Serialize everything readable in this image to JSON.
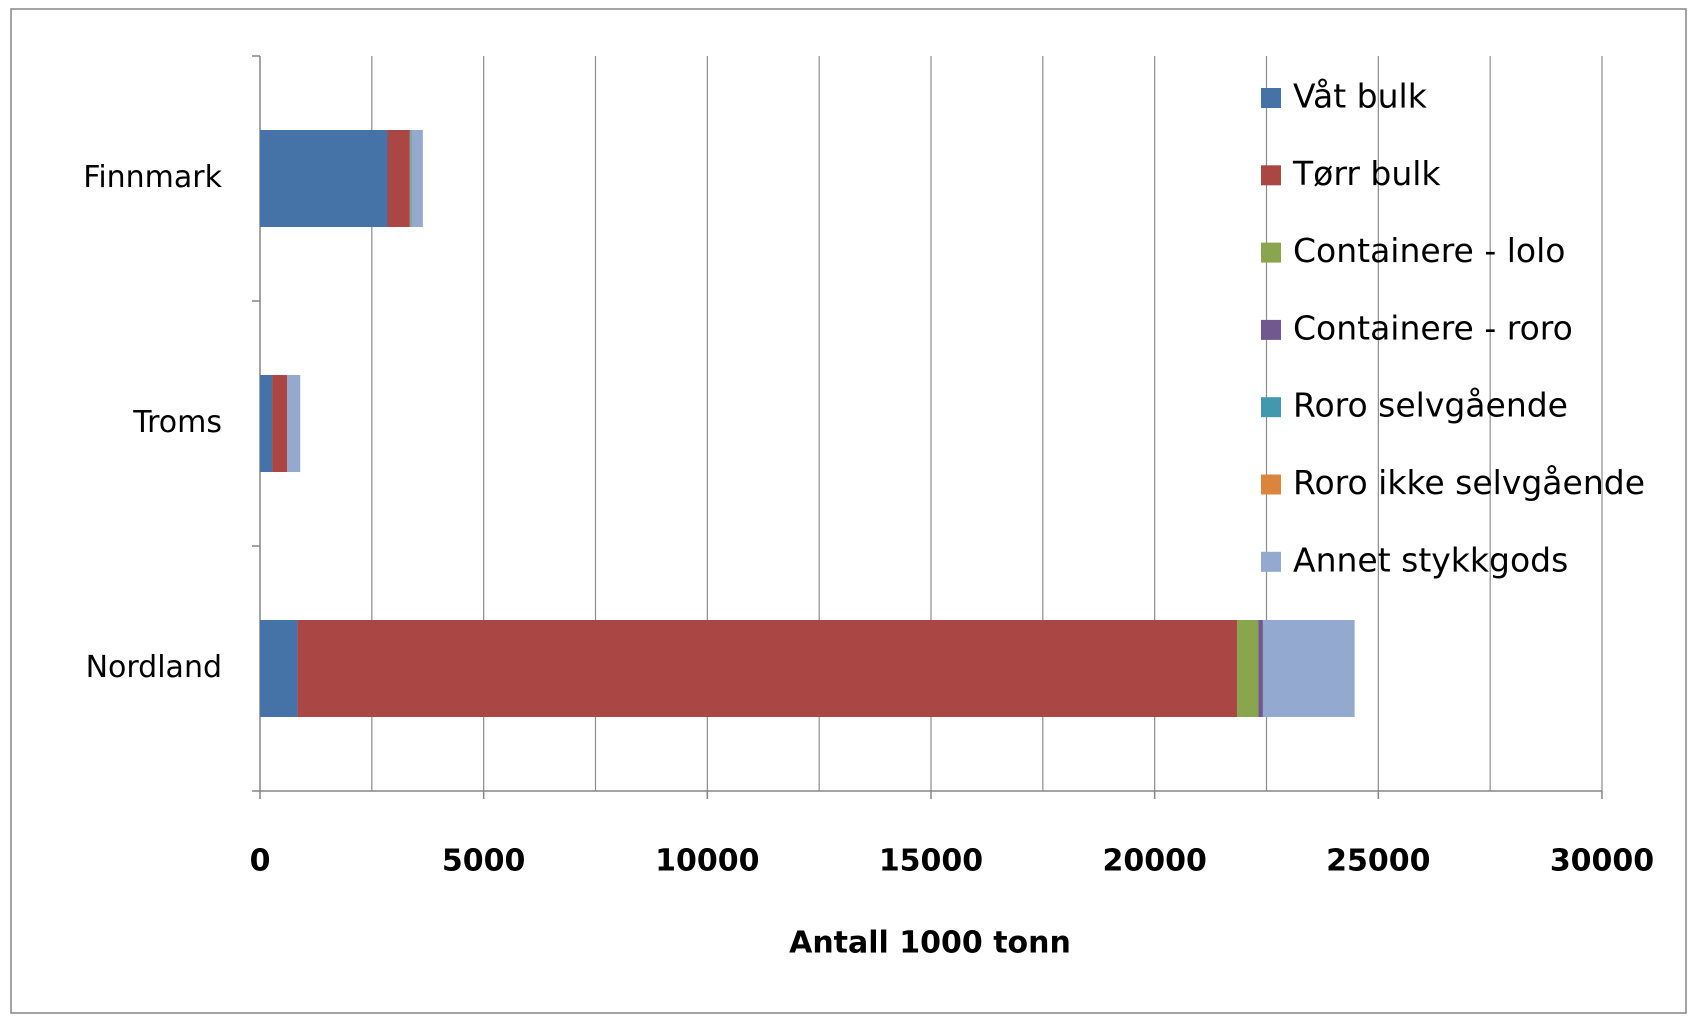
{
  "chart_data": {
    "type": "stacked_barh",
    "categories": [
      "Finnmark",
      "Troms",
      "Nordland"
    ],
    "series": [
      {
        "name": "Våt bulk",
        "color": "#4572a7",
        "values": [
          2850,
          270,
          840
        ]
      },
      {
        "name": "Tørr bulk",
        "color": "#aa4643",
        "values": [
          500,
          340,
          21000
        ]
      },
      {
        "name": "Containere - lolo",
        "color": "#89a54e",
        "values": [
          20,
          0,
          480
        ]
      },
      {
        "name": "Containere - roro",
        "color": "#71588f",
        "values": [
          0,
          0,
          100
        ]
      },
      {
        "name": "Roro selvgående",
        "color": "#4198af",
        "values": [
          20,
          0,
          0
        ]
      },
      {
        "name": "Roro ikke selvgående",
        "color": "#db843d",
        "values": [
          0,
          0,
          0
        ]
      },
      {
        "name": "Annet stykkgods",
        "color": "#93a9cf",
        "values": [
          250,
          290,
          2050
        ]
      }
    ],
    "xlabel": "Antall 1000 tonn",
    "xlim": [
      0,
      30000
    ],
    "xticks": [
      0,
      5000,
      10000,
      15000,
      20000,
      25000,
      30000
    ],
    "minor_xticks": [
      2500,
      7500,
      12500,
      17500,
      22500,
      27500
    ],
    "grid": true,
    "legend": "right"
  }
}
